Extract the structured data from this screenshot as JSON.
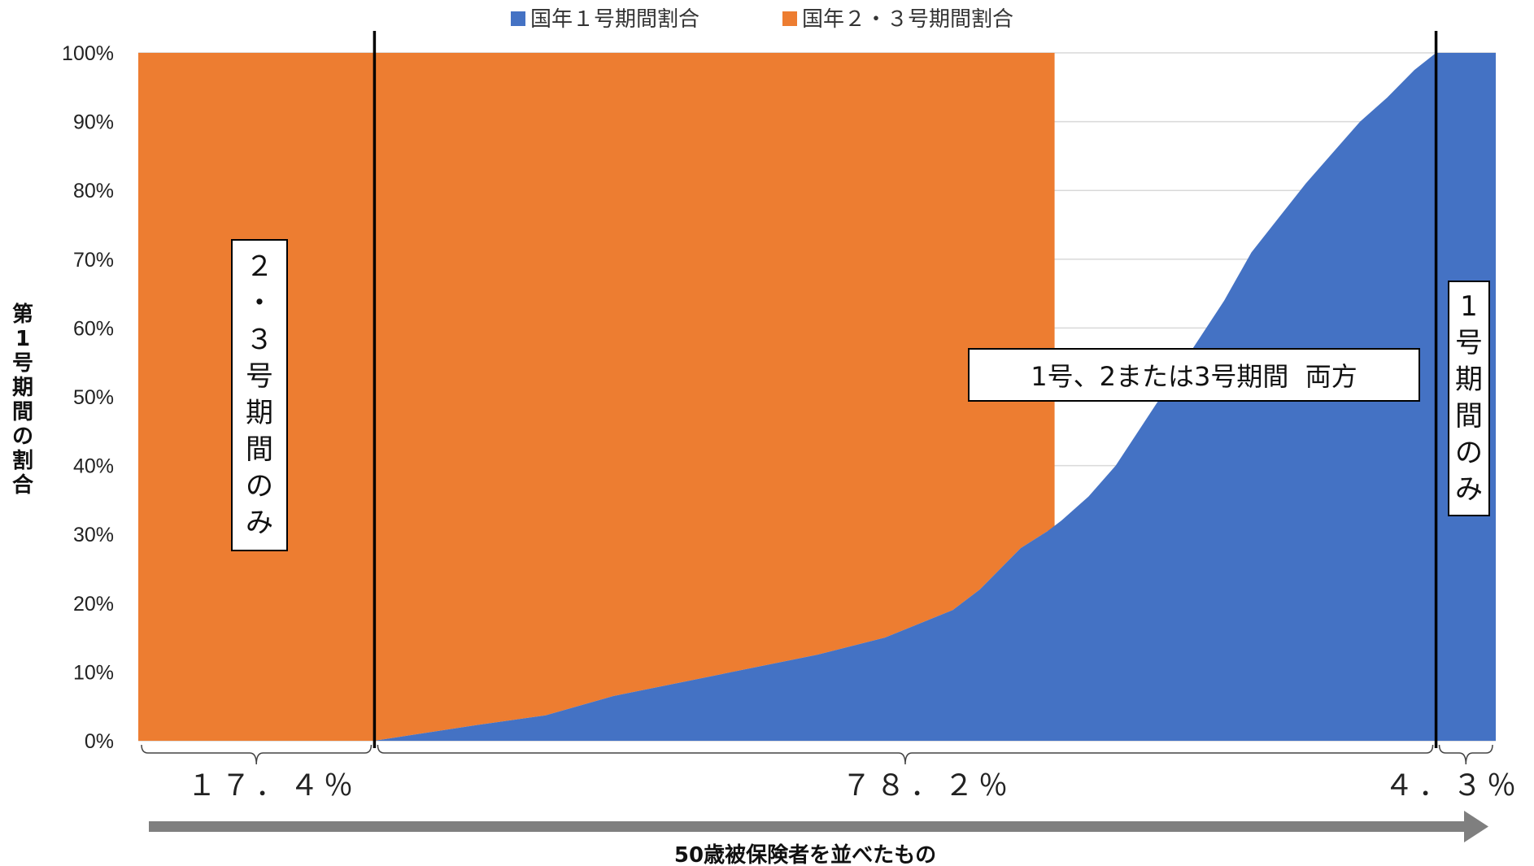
{
  "chart_data": {
    "type": "area",
    "legend": [
      {
        "name": "国年１号期間割合",
        "color": "#4472C4"
      },
      {
        "name": "国年２・３号期間割合",
        "color": "#ED7D31"
      }
    ],
    "legend_position": "top-center",
    "yticks": [
      "0%",
      "10%",
      "20%",
      "30%",
      "40%",
      "50%",
      "60%",
      "70%",
      "80%",
      "90%",
      "100%"
    ],
    "ylim": [
      0,
      100
    ],
    "ylabel": "第1号期間の割合",
    "xlabel": "50歳被保険者を並べたもの",
    "xlim": [
      0,
      100
    ],
    "grid": true,
    "series": [
      {
        "name": "国年１号期間割合",
        "color": "#4472C4",
        "x": [
          0,
          17.4,
          20,
          25,
          30,
          35,
          40,
          45,
          50,
          55,
          60,
          62,
          65,
          67,
          68,
          70,
          72,
          74,
          76,
          78,
          80,
          82,
          84,
          86,
          88,
          90,
          92,
          94,
          95.6,
          95.7,
          100
        ],
        "y": [
          0,
          0,
          0.8,
          2.3,
          3.7,
          6.5,
          8.5,
          10.5,
          12.5,
          15,
          19,
          22,
          28,
          30.5,
          32,
          35.5,
          40,
          46,
          52,
          58,
          64,
          71,
          76,
          81,
          85.5,
          90,
          93.5,
          97.5,
          100,
          100,
          100
        ]
      },
      {
        "name": "国年２・３号期間割合",
        "color": "#ED7D31",
        "x": [
          0,
          67.5,
          67.5
        ],
        "y": [
          100,
          100,
          29
        ],
        "note_visible": false
      }
    ],
    "segments": [
      {
        "label": "１７．４％",
        "from": 0,
        "to": 17.4
      },
      {
        "label": "７８．２％",
        "from": 17.4,
        "to": 95.6
      },
      {
        "label": "４．３％",
        "from": 95.6,
        "to": 100
      }
    ],
    "dividers_x": [
      17.4,
      95.6
    ]
  },
  "annotations": {
    "left": [
      "２",
      "・",
      "３",
      "号",
      "期",
      "間",
      "の",
      "み"
    ],
    "middle": "1号、2または3号期間  両方",
    "right": [
      "1",
      "号",
      "期",
      "間",
      "の",
      "み"
    ]
  },
  "colors": {
    "blue": "#4472C4",
    "orange": "#ED7D31",
    "grid": "#D9D9D9",
    "arrow": "#7F7F7F"
  }
}
